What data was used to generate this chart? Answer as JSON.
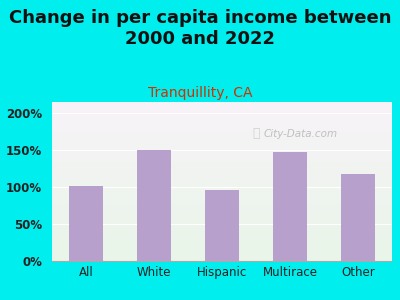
{
  "title": "Change in per capita income between\n2000 and 2022",
  "subtitle": "Tranquillity, CA",
  "categories": [
    "All",
    "White",
    "Hispanic",
    "Multirace",
    "Other"
  ],
  "values": [
    101,
    150,
    96,
    148,
    117
  ],
  "bar_color": "#b8a0cc",
  "title_fontsize": 13,
  "subtitle_fontsize": 10,
  "subtitle_color": "#cc3300",
  "title_color": "#111111",
  "bg_color": "#00eeee",
  "yticks": [
    0,
    50,
    100,
    150,
    200
  ],
  "ylim": [
    0,
    215
  ],
  "watermark": "City-Data.com"
}
